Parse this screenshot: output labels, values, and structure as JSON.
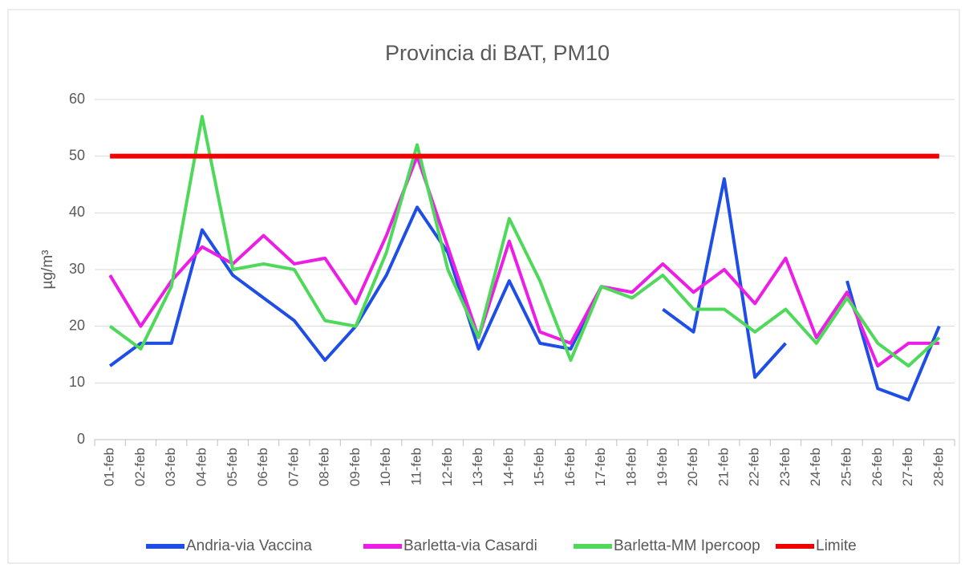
{
  "chart_data": {
    "type": "line",
    "title": "Provincia di BAT, PM10",
    "y_label": "µg/m³",
    "categories": [
      "01-feb",
      "02-feb",
      "03-feb",
      "04-feb",
      "05-feb",
      "06-feb",
      "07-feb",
      "08-feb",
      "09-feb",
      "10-feb",
      "11-feb",
      "12-feb",
      "13-feb",
      "14-feb",
      "15-feb",
      "16-feb",
      "17-feb",
      "18-feb",
      "19-feb",
      "20-feb",
      "21-feb",
      "22-feb",
      "23-feb",
      "24-feb",
      "25-feb",
      "26-feb",
      "27-feb",
      "28-feb"
    ],
    "series": [
      {
        "name": "Andria-via Vaccina",
        "color": "#1f4ee6",
        "values": [
          13,
          17,
          17,
          37,
          29,
          25,
          21,
          14,
          20,
          29,
          41,
          33,
          16,
          28,
          17,
          16,
          27,
          null,
          23,
          19,
          46,
          11,
          17,
          null,
          28,
          9,
          7,
          20
        ]
      },
      {
        "name": "Barletta-via Casardi",
        "color": "#ec1ee6",
        "values": [
          29,
          20,
          28,
          34,
          31,
          36,
          31,
          32,
          24,
          36,
          50,
          34,
          18,
          35,
          19,
          17,
          27,
          26,
          31,
          26,
          30,
          24,
          32,
          18,
          26,
          13,
          17,
          17
        ]
      },
      {
        "name": "Barletta-MM Ipercoop",
        "color": "#4fd95a",
        "values": [
          20,
          16,
          27,
          57,
          30,
          31,
          30,
          21,
          20,
          33,
          52,
          30,
          18,
          39,
          28,
          14,
          27,
          25,
          29,
          23,
          23,
          19,
          23,
          17,
          25,
          17,
          13,
          18
        ]
      },
      {
        "name": "Limite",
        "color": "#f00000",
        "values": [
          50,
          50,
          50,
          50,
          50,
          50,
          50,
          50,
          50,
          50,
          50,
          50,
          50,
          50,
          50,
          50,
          50,
          50,
          50,
          50,
          50,
          50,
          50,
          50,
          50,
          50,
          50,
          50
        ]
      }
    ],
    "ylim": [
      0,
      60
    ],
    "yticks": [
      0,
      10,
      20,
      30,
      40,
      50,
      60
    ],
    "grid": true,
    "legend": "bottom"
  }
}
